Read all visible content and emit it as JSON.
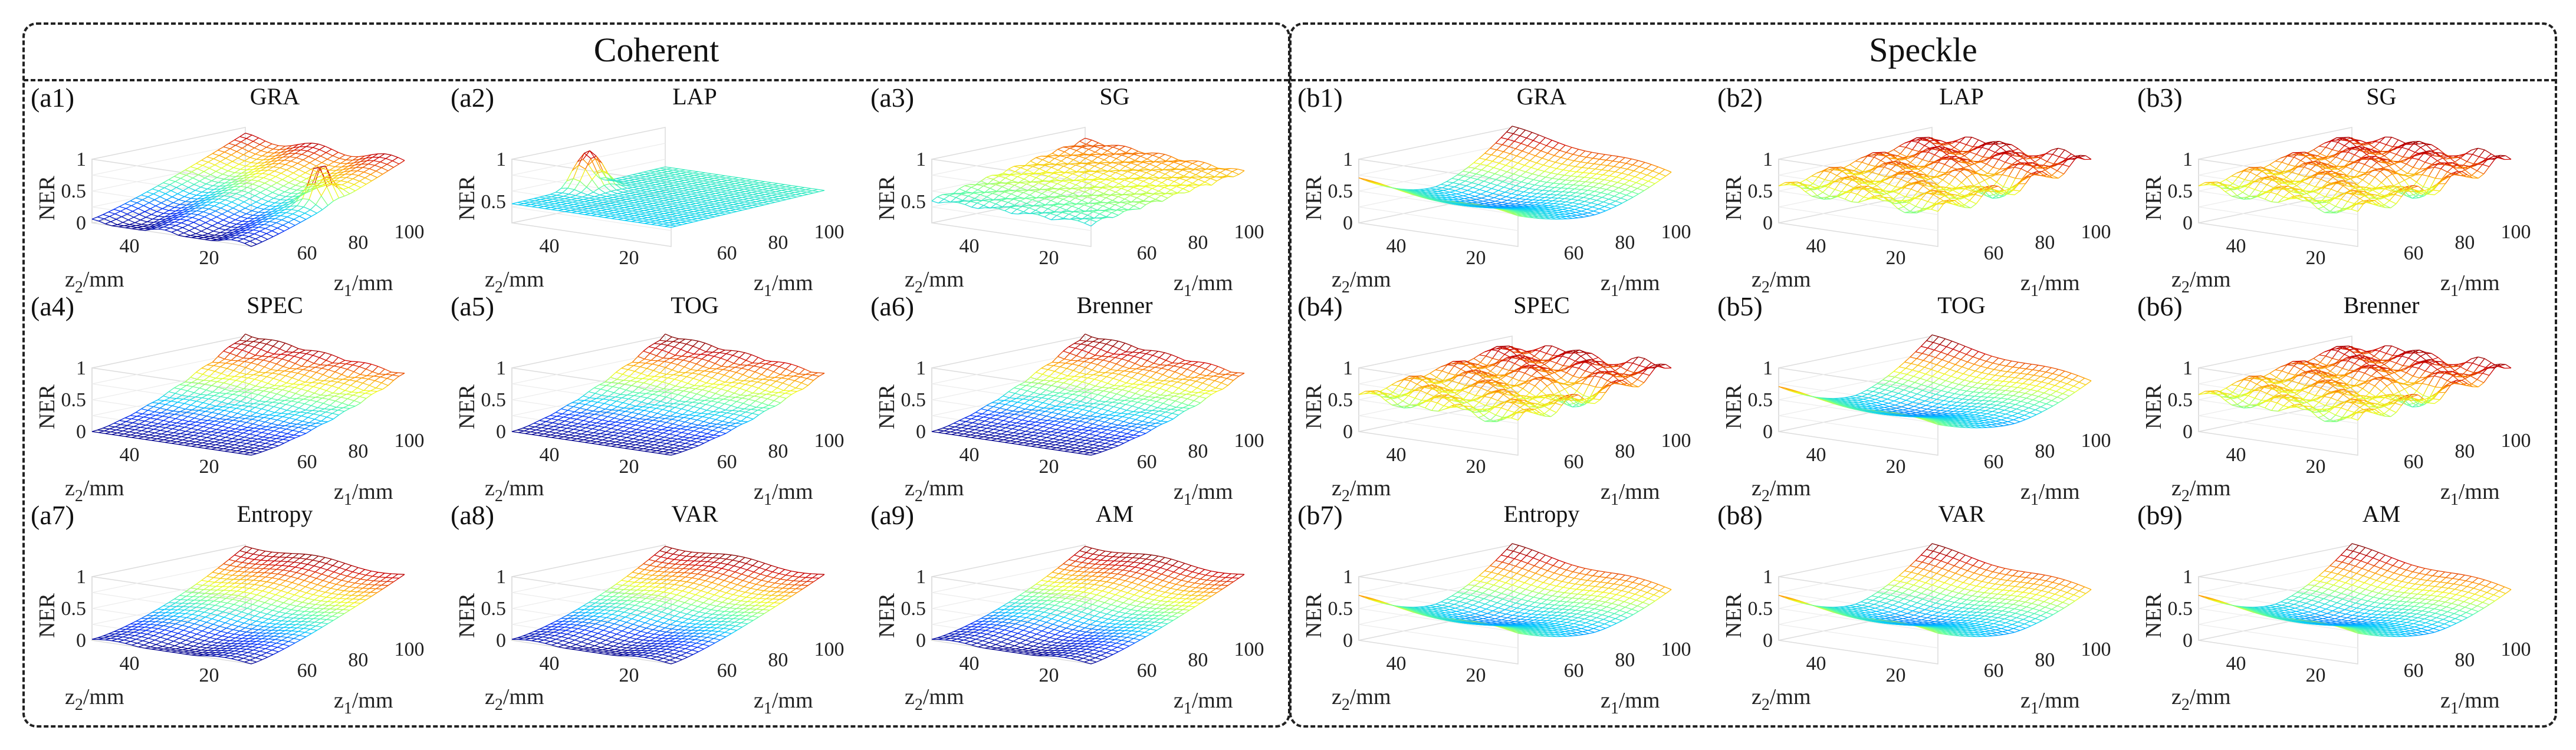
{
  "groups": [
    {
      "key": "a",
      "title": "Coherent"
    },
    {
      "key": "b",
      "title": "Speckle"
    }
  ],
  "colormap": [
    "#00008f",
    "#0030ff",
    "#00c8ff",
    "#60ffa0",
    "#f0ff20",
    "#ff9000",
    "#d00000",
    "#800000"
  ],
  "chart_data": [
    {
      "type": "surface",
      "id": "a1",
      "tag": "(a1)",
      "title": "GRA",
      "group": "Coherent",
      "shape": "spike",
      "xlabel": "z1/mm",
      "ylabel": "z2/mm",
      "zlabel": "NER",
      "xticks": [
        60,
        80,
        100
      ],
      "yticks": [
        20,
        40
      ],
      "zticks": [
        0,
        0.5,
        1
      ],
      "xlim": [
        40,
        100
      ],
      "ylim": [
        10,
        50
      ],
      "zlim": [
        0,
        1
      ]
    },
    {
      "type": "surface",
      "id": "a2",
      "tag": "(a2)",
      "title": "LAP",
      "group": "Coherent",
      "shape": "peak",
      "xlabel": "z1/mm",
      "ylabel": "z2/mm",
      "zlabel": "NER",
      "xticks": [
        60,
        80,
        100
      ],
      "yticks": [
        20,
        40
      ],
      "zticks": [
        0.5,
        1
      ],
      "xlim": [
        40,
        100
      ],
      "ylim": [
        10,
        50
      ],
      "zlim": [
        0.25,
        1
      ]
    },
    {
      "type": "surface",
      "id": "a3",
      "tag": "(a3)",
      "title": "SG",
      "group": "Coherent",
      "shape": "bowl",
      "xlabel": "z1/mm",
      "ylabel": "z2/mm",
      "zlabel": "NER",
      "xticks": [
        60,
        80,
        100
      ],
      "yticks": [
        20,
        40
      ],
      "zticks": [
        0.5,
        1
      ],
      "xlim": [
        40,
        100
      ],
      "ylim": [
        10,
        50
      ],
      "zlim": [
        0.25,
        1
      ]
    },
    {
      "type": "surface",
      "id": "a4",
      "tag": "(a4)",
      "title": "SPEC",
      "group": "Coherent",
      "shape": "ramp",
      "xlabel": "z1/mm",
      "ylabel": "z2/mm",
      "zlabel": "NER",
      "xticks": [
        60,
        80,
        100
      ],
      "yticks": [
        20,
        40
      ],
      "zticks": [
        0,
        0.5,
        1
      ],
      "xlim": [
        40,
        100
      ],
      "ylim": [
        10,
        50
      ],
      "zlim": [
        0,
        1
      ]
    },
    {
      "type": "surface",
      "id": "a5",
      "tag": "(a5)",
      "title": "TOG",
      "group": "Coherent",
      "shape": "ramp",
      "xlabel": "z1/mm",
      "ylabel": "z2/mm",
      "zlabel": "NER",
      "xticks": [
        60,
        80,
        100
      ],
      "yticks": [
        20,
        40
      ],
      "zticks": [
        0,
        0.5,
        1
      ],
      "xlim": [
        40,
        100
      ],
      "ylim": [
        10,
        50
      ],
      "zlim": [
        0,
        1
      ]
    },
    {
      "type": "surface",
      "id": "a6",
      "tag": "(a6)",
      "title": "Brenner",
      "group": "Coherent",
      "shape": "ramp",
      "xlabel": "z1/mm",
      "ylabel": "z2/mm",
      "zlabel": "NER",
      "xticks": [
        60,
        80,
        100
      ],
      "yticks": [
        20,
        40
      ],
      "zticks": [
        0,
        0.5,
        1
      ],
      "xlim": [
        40,
        100
      ],
      "ylim": [
        10,
        50
      ],
      "zlim": [
        0,
        1
      ]
    },
    {
      "type": "surface",
      "id": "a7",
      "tag": "(a7)",
      "title": "Entropy",
      "group": "Coherent",
      "shape": "smooth",
      "xlabel": "z1/mm",
      "ylabel": "z2/mm",
      "zlabel": "NER",
      "xticks": [
        60,
        80,
        100
      ],
      "yticks": [
        20,
        40
      ],
      "zticks": [
        0,
        0.5,
        1
      ],
      "xlim": [
        40,
        100
      ],
      "ylim": [
        10,
        50
      ],
      "zlim": [
        0,
        1
      ]
    },
    {
      "type": "surface",
      "id": "a8",
      "tag": "(a8)",
      "title": "VAR",
      "group": "Coherent",
      "shape": "smooth",
      "xlabel": "z1/mm",
      "ylabel": "z2/mm",
      "zlabel": "NER",
      "xticks": [
        60,
        80,
        100
      ],
      "yticks": [
        20,
        40
      ],
      "zticks": [
        0,
        0.5,
        1
      ],
      "xlim": [
        40,
        100
      ],
      "ylim": [
        10,
        50
      ],
      "zlim": [
        0,
        1
      ]
    },
    {
      "type": "surface",
      "id": "a9",
      "tag": "(a9)",
      "title": "AM",
      "group": "Coherent",
      "shape": "smooth",
      "xlabel": "z1/mm",
      "ylabel": "z2/mm",
      "zlabel": "NER",
      "xticks": [
        60,
        80,
        100
      ],
      "yticks": [
        20,
        40
      ],
      "zticks": [
        0,
        0.5,
        1
      ],
      "xlim": [
        40,
        100
      ],
      "ylim": [
        10,
        50
      ],
      "zlim": [
        0,
        1
      ]
    },
    {
      "type": "surface",
      "id": "b1",
      "tag": "(b1)",
      "title": "GRA",
      "group": "Speckle",
      "shape": "valley",
      "xlabel": "z1/mm",
      "ylabel": "z2/mm",
      "zlabel": "NER",
      "xticks": [
        60,
        80,
        100
      ],
      "yticks": [
        20,
        40
      ],
      "zticks": [
        0,
        0.5,
        1
      ],
      "xlim": [
        40,
        100
      ],
      "ylim": [
        10,
        50
      ],
      "zlim": [
        0,
        1
      ]
    },
    {
      "type": "surface",
      "id": "b2",
      "tag": "(b2)",
      "title": "LAP",
      "group": "Speckle",
      "shape": "noisy",
      "xlabel": "z1/mm",
      "ylabel": "z2/mm",
      "zlabel": "NER",
      "xticks": [
        60,
        80,
        100
      ],
      "yticks": [
        20,
        40
      ],
      "zticks": [
        0,
        0.5,
        1
      ],
      "xlim": [
        40,
        100
      ],
      "ylim": [
        10,
        50
      ],
      "zlim": [
        0,
        1
      ]
    },
    {
      "type": "surface",
      "id": "b3",
      "tag": "(b3)",
      "title": "SG",
      "group": "Speckle",
      "shape": "noisy",
      "xlabel": "z1/mm",
      "ylabel": "z2/mm",
      "zlabel": "NER",
      "xticks": [
        60,
        80,
        100
      ],
      "yticks": [
        20,
        40
      ],
      "zticks": [
        0,
        0.5,
        1
      ],
      "xlim": [
        40,
        100
      ],
      "ylim": [
        10,
        50
      ],
      "zlim": [
        0,
        1
      ]
    },
    {
      "type": "surface",
      "id": "b4",
      "tag": "(b4)",
      "title": "SPEC",
      "group": "Speckle",
      "shape": "noisy",
      "xlabel": "z1/mm",
      "ylabel": "z2/mm",
      "zlabel": "NER",
      "xticks": [
        60,
        80,
        100
      ],
      "yticks": [
        20,
        40
      ],
      "zticks": [
        0,
        0.5,
        1
      ],
      "xlim": [
        40,
        100
      ],
      "ylim": [
        10,
        50
      ],
      "zlim": [
        0,
        1
      ]
    },
    {
      "type": "surface",
      "id": "b5",
      "tag": "(b5)",
      "title": "TOG",
      "group": "Speckle",
      "shape": "valley",
      "xlabel": "z1/mm",
      "ylabel": "z2/mm",
      "zlabel": "NER",
      "xticks": [
        60,
        80,
        100
      ],
      "yticks": [
        20,
        40
      ],
      "zticks": [
        0,
        0.5,
        1
      ],
      "xlim": [
        40,
        100
      ],
      "ylim": [
        10,
        50
      ],
      "zlim": [
        0,
        1
      ]
    },
    {
      "type": "surface",
      "id": "b6",
      "tag": "(b6)",
      "title": "Brenner",
      "group": "Speckle",
      "shape": "noisy",
      "xlabel": "z1/mm",
      "ylabel": "z2/mm",
      "zlabel": "NER",
      "xticks": [
        60,
        80,
        100
      ],
      "yticks": [
        20,
        40
      ],
      "zticks": [
        0,
        0.5,
        1
      ],
      "xlim": [
        40,
        100
      ],
      "ylim": [
        10,
        50
      ],
      "zlim": [
        0,
        1
      ]
    },
    {
      "type": "surface",
      "id": "b7",
      "tag": "(b7)",
      "title": "Entropy",
      "group": "Speckle",
      "shape": "valley",
      "xlabel": "z1/mm",
      "ylabel": "z2/mm",
      "zlabel": "NER",
      "xticks": [
        60,
        80,
        100
      ],
      "yticks": [
        20,
        40
      ],
      "zticks": [
        0,
        0.5,
        1
      ],
      "xlim": [
        40,
        100
      ],
      "ylim": [
        10,
        50
      ],
      "zlim": [
        0,
        1
      ]
    },
    {
      "type": "surface",
      "id": "b8",
      "tag": "(b8)",
      "title": "VAR",
      "group": "Speckle",
      "shape": "valley",
      "xlabel": "z1/mm",
      "ylabel": "z2/mm",
      "zlabel": "NER",
      "xticks": [
        60,
        80,
        100
      ],
      "yticks": [
        20,
        40
      ],
      "zticks": [
        0,
        0.5,
        1
      ],
      "xlim": [
        40,
        100
      ],
      "ylim": [
        10,
        50
      ],
      "zlim": [
        0,
        1
      ]
    },
    {
      "type": "surface",
      "id": "b9",
      "tag": "(b9)",
      "title": "AM",
      "group": "Speckle",
      "shape": "valley",
      "xlabel": "z1/mm",
      "ylabel": "z2/mm",
      "zlabel": "NER",
      "xticks": [
        60,
        80,
        100
      ],
      "yticks": [
        20,
        40
      ],
      "zticks": [
        0,
        0.5,
        1
      ],
      "xlim": [
        40,
        100
      ],
      "ylim": [
        10,
        50
      ],
      "zlim": [
        0,
        1
      ]
    }
  ]
}
